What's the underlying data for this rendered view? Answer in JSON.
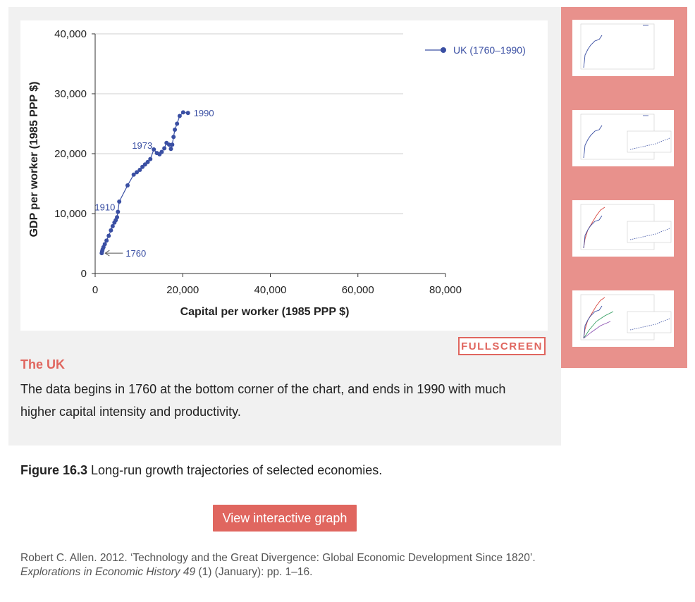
{
  "figure": {
    "step_title": "The UK",
    "step_text": "The data begins in 1760 at the bottom corner of the chart, and ends in 1990 with much higher capital intensity and productivity.",
    "fullscreen_label": "FULLSCREEN",
    "caption_number": "Figure 16.3",
    "caption_text": " Long-run growth trajectories of selected economies.",
    "view_button_label": "View interactive graph",
    "source_prefix": "Robert C. Allen. 2012. ‘Technology and the Great Divergence: Global Economic Development Since 1820’. ",
    "source_journal": "Explorations in Economic History 49",
    "source_suffix": " (1) (January): pp. 1–16."
  },
  "colors": {
    "accent": "#e0665f",
    "series": "#3a4fa3",
    "thumb_rail": "#e8918c"
  },
  "chart_data": {
    "type": "line",
    "title": "",
    "xlabel": "Capital per worker (1985 PPP $)",
    "ylabel": "GDP per worker (1985 PPP $)",
    "xlim": [
      0,
      80000
    ],
    "ylim": [
      0,
      40000
    ],
    "x_ticks": [
      "0",
      "20,000",
      "40,000",
      "60,000",
      "80,000"
    ],
    "y_ticks": [
      "0",
      "10,000",
      "20,000",
      "30,000",
      "40,000"
    ],
    "grid": "horizontal",
    "legend_position": "top-right",
    "series": [
      {
        "name": "UK (1760–1990)",
        "points": [
          [
            1500,
            3400
          ],
          [
            1600,
            3700
          ],
          [
            1700,
            4000
          ],
          [
            1900,
            4400
          ],
          [
            2200,
            4900
          ],
          [
            2600,
            5500
          ],
          [
            3100,
            6300
          ],
          [
            3600,
            7200
          ],
          [
            4000,
            7900
          ],
          [
            4400,
            8500
          ],
          [
            4700,
            8900
          ],
          [
            5000,
            9400
          ],
          [
            5200,
            10300
          ],
          [
            5500,
            12000
          ],
          [
            7400,
            14700
          ],
          [
            8800,
            16500
          ],
          [
            9500,
            16900
          ],
          [
            10200,
            17300
          ],
          [
            10800,
            17800
          ],
          [
            11400,
            18200
          ],
          [
            12000,
            18600
          ],
          [
            12600,
            19100
          ],
          [
            13400,
            20700
          ],
          [
            14100,
            20100
          ],
          [
            14700,
            19900
          ],
          [
            15200,
            20300
          ],
          [
            15800,
            20900
          ],
          [
            16300,
            21800
          ],
          [
            16900,
            21500
          ],
          [
            17300,
            20800
          ],
          [
            17600,
            21500
          ],
          [
            17900,
            22800
          ],
          [
            18200,
            24000
          ],
          [
            18700,
            25000
          ],
          [
            19300,
            26300
          ],
          [
            20100,
            26900
          ],
          [
            21200,
            26800
          ]
        ]
      }
    ],
    "annotations": [
      {
        "text": "1760",
        "x": 1500,
        "y": 3400,
        "arrow": true
      },
      {
        "text": "1910",
        "x": 5200,
        "y": 10300
      },
      {
        "text": "1973",
        "x": 13400,
        "y": 20700
      },
      {
        "text": "1990",
        "x": 21200,
        "y": 26800
      }
    ]
  }
}
